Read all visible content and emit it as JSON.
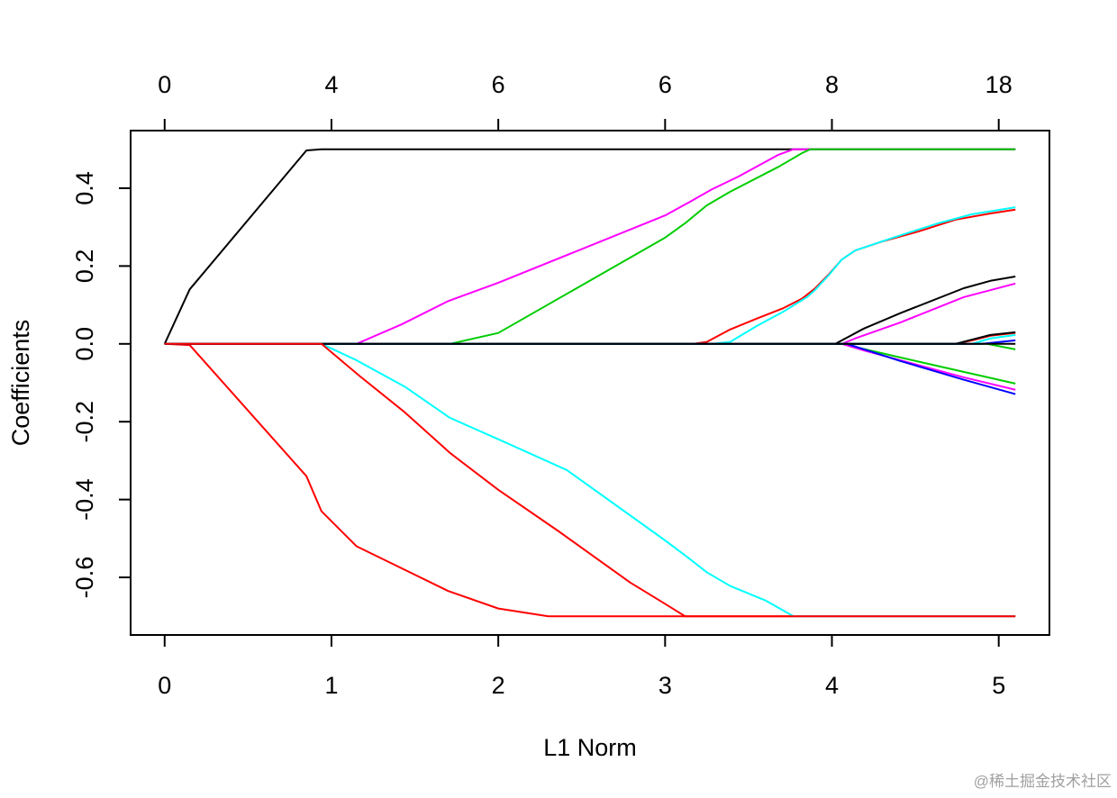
{
  "chart_data": {
    "type": "line",
    "xlabel": "L1 Norm",
    "ylabel": "Coefficients",
    "xlim": [
      0,
      5.1
    ],
    "ylim": [
      -0.7,
      0.5
    ],
    "grid": false,
    "legend": "none",
    "x_ticks": [
      0,
      1,
      2,
      3,
      4,
      5
    ],
    "x_tick_labels": [
      "0",
      "1",
      "2",
      "3",
      "4",
      "5"
    ],
    "top_tick_labels": [
      "0",
      "4",
      "6",
      "6",
      "8",
      "18"
    ],
    "y_ticks": [
      -0.6,
      -0.4,
      -0.2,
      0.0,
      0.2,
      0.4
    ],
    "y_tick_labels": [
      "-0.6",
      "-0.4",
      "-0.2",
      "0.0",
      "0.2",
      "0.4"
    ],
    "series": [
      {
        "color": "#000000",
        "points": [
          [
            0,
            0
          ],
          [
            0.15,
            0.14
          ],
          [
            0.85,
            0.497
          ],
          [
            0.94,
            0.5
          ],
          [
            5.1,
            0.5
          ]
        ]
      },
      {
        "color": "#FF0000",
        "points": [
          [
            0,
            0
          ],
          [
            0.15,
            -0.003
          ],
          [
            0.85,
            -0.34
          ],
          [
            0.94,
            -0.43
          ],
          [
            1.15,
            -0.52
          ],
          [
            1.7,
            -0.635
          ],
          [
            2.0,
            -0.68
          ],
          [
            2.3,
            -0.7
          ],
          [
            5.1,
            -0.7
          ]
        ]
      },
      {
        "color": "#FF00FF",
        "points": [
          [
            0,
            0
          ],
          [
            1.15,
            0
          ],
          [
            1.42,
            0.05
          ],
          [
            1.7,
            0.11
          ],
          [
            2.0,
            0.157
          ],
          [
            3.0,
            0.33
          ],
          [
            3.14,
            0.363
          ],
          [
            3.28,
            0.397
          ],
          [
            3.44,
            0.43
          ],
          [
            3.68,
            0.486
          ],
          [
            3.77,
            0.5
          ],
          [
            5.1,
            0.5
          ]
        ]
      },
      {
        "color": "#00CD00",
        "points": [
          [
            0,
            0
          ],
          [
            1.71,
            0
          ],
          [
            2.0,
            0.028
          ],
          [
            2.47,
            0.143
          ],
          [
            3.0,
            0.273
          ],
          [
            3.12,
            0.31
          ],
          [
            3.25,
            0.356
          ],
          [
            3.39,
            0.391
          ],
          [
            3.68,
            0.455
          ],
          [
            3.82,
            0.49
          ],
          [
            3.87,
            0.5
          ],
          [
            5.1,
            0.5
          ]
        ]
      },
      {
        "color": "#00FFFF",
        "points": [
          [
            0,
            0
          ],
          [
            0.94,
            0
          ],
          [
            1.15,
            -0.042
          ],
          [
            1.44,
            -0.11
          ],
          [
            1.71,
            -0.19
          ],
          [
            2.0,
            -0.245
          ],
          [
            2.41,
            -0.324
          ],
          [
            3.0,
            -0.505
          ],
          [
            3.14,
            -0.55
          ],
          [
            3.25,
            -0.587
          ],
          [
            3.39,
            -0.622
          ],
          [
            3.6,
            -0.659
          ],
          [
            3.77,
            -0.7
          ],
          [
            5.1,
            -0.7
          ]
        ]
      },
      {
        "color": "#FF0000",
        "points": [
          [
            0,
            0
          ],
          [
            3.17,
            0
          ],
          [
            3.25,
            0.005
          ],
          [
            3.39,
            0.037
          ],
          [
            3.55,
            0.065
          ],
          [
            3.71,
            0.092
          ],
          [
            3.82,
            0.116
          ],
          [
            3.9,
            0.143
          ],
          [
            3.98,
            0.178
          ],
          [
            4.06,
            0.217
          ],
          [
            4.14,
            0.24
          ],
          [
            4.3,
            0.263
          ],
          [
            4.52,
            0.289
          ],
          [
            4.74,
            0.319
          ],
          [
            4.95,
            0.335
          ],
          [
            5.1,
            0.345
          ]
        ]
      },
      {
        "color": "#00FFFF",
        "points": [
          [
            0,
            0
          ],
          [
            3.28,
            0
          ],
          [
            3.39,
            0.005
          ],
          [
            3.55,
            0.046
          ],
          [
            3.71,
            0.083
          ],
          [
            3.85,
            0.12
          ],
          [
            3.9,
            0.139
          ],
          [
            3.98,
            0.176
          ],
          [
            4.06,
            0.217
          ],
          [
            4.14,
            0.24
          ],
          [
            4.36,
            0.272
          ],
          [
            4.63,
            0.309
          ],
          [
            4.84,
            0.333
          ],
          [
            5.1,
            0.351
          ]
        ]
      },
      {
        "color": "#000000",
        "points": [
          [
            0,
            0
          ],
          [
            4.02,
            0
          ],
          [
            4.09,
            0.016
          ],
          [
            4.19,
            0.039
          ],
          [
            4.41,
            0.079
          ],
          [
            4.79,
            0.143
          ],
          [
            4.95,
            0.162
          ],
          [
            5.1,
            0.173
          ]
        ]
      },
      {
        "color": "#FF00FF",
        "points": [
          [
            0,
            0
          ],
          [
            4.06,
            0
          ],
          [
            4.14,
            0.014
          ],
          [
            4.41,
            0.055
          ],
          [
            4.79,
            0.12
          ],
          [
            5.1,
            0.155
          ]
        ]
      },
      {
        "color": "#00CD00",
        "points": [
          [
            0,
            0
          ],
          [
            4.06,
            0
          ],
          [
            4.41,
            -0.035
          ],
          [
            4.79,
            -0.072
          ],
          [
            5.1,
            -0.102
          ]
        ]
      },
      {
        "color": "#FF00FF",
        "points": [
          [
            0,
            0
          ],
          [
            4.06,
            0
          ],
          [
            4.2,
            -0.018
          ],
          [
            4.41,
            -0.042
          ],
          [
            4.79,
            -0.086
          ],
          [
            5.1,
            -0.118
          ]
        ]
      },
      {
        "color": "#0000FF",
        "points": [
          [
            0,
            0
          ],
          [
            4.09,
            0
          ],
          [
            4.41,
            -0.044
          ],
          [
            4.79,
            -0.092
          ],
          [
            5.1,
            -0.129
          ]
        ]
      },
      {
        "color": "#FF0000",
        "points": [
          [
            0,
            0
          ],
          [
            4.74,
            0
          ],
          [
            4.84,
            0.009
          ],
          [
            4.95,
            0.021
          ],
          [
            5.1,
            0.028
          ]
        ]
      },
      {
        "color": "#000000",
        "points": [
          [
            0,
            0
          ],
          [
            4.74,
            0
          ],
          [
            4.95,
            0.023
          ],
          [
            5.1,
            0.03
          ]
        ]
      },
      {
        "color": "#00FFFF",
        "points": [
          [
            0,
            0
          ],
          [
            4.84,
            0
          ],
          [
            4.95,
            0.014
          ],
          [
            5.1,
            0.023
          ]
        ]
      },
      {
        "color": "#00CD00",
        "points": [
          [
            0,
            0
          ],
          [
            4.93,
            0
          ],
          [
            5.1,
            -0.014
          ]
        ]
      },
      {
        "color": "#0000FF",
        "points": [
          [
            0,
            0
          ],
          [
            4.9,
            0
          ],
          [
            5.1,
            0.009
          ]
        ]
      },
      {
        "color": "#000000",
        "points": [
          [
            0,
            0
          ],
          [
            5.1,
            0
          ]
        ]
      },
      {
        "color": "#FF0000",
        "points": [
          [
            0,
            0
          ],
          [
            0.94,
            0
          ],
          [
            1.17,
            -0.083
          ],
          [
            1.44,
            -0.176
          ],
          [
            1.71,
            -0.28
          ],
          [
            2.0,
            -0.375
          ],
          [
            2.36,
            -0.481
          ],
          [
            2.79,
            -0.613
          ],
          [
            3.0,
            -0.668
          ],
          [
            3.12,
            -0.7
          ],
          [
            5.1,
            -0.7
          ]
        ]
      }
    ]
  },
  "watermark": "@稀土掘金技术社区"
}
